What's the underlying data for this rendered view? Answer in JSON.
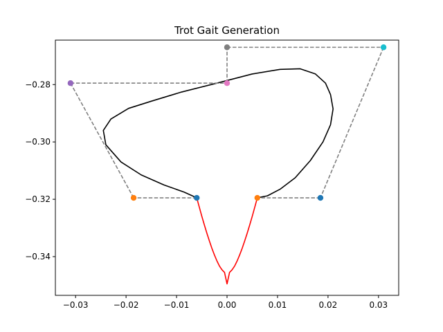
{
  "chart_data": {
    "type": "line",
    "title": "Trot Gait Generation",
    "xlabel": "",
    "ylabel": "",
    "xlim": [
      -0.034,
      0.034
    ],
    "ylim": [
      -0.3535,
      -0.2645
    ],
    "x_ticks": [
      -0.03,
      -0.02,
      -0.01,
      0.0,
      0.01,
      0.02,
      0.03
    ],
    "x_tick_labels": [
      "−0.03",
      "−0.02",
      "−0.01",
      "0.00",
      "0.01",
      "0.02",
      "0.03"
    ],
    "y_ticks": [
      -0.34,
      -0.32,
      -0.3,
      -0.28
    ],
    "y_tick_labels": [
      "−0.34",
      "−0.32",
      "−0.30",
      "−0.28"
    ],
    "grid": false,
    "legend": "none",
    "control_polygon": {
      "style": "dashed",
      "color": "#808080",
      "points": [
        [
          -0.006,
          -0.3195
        ],
        [
          -0.0185,
          -0.3195
        ],
        [
          -0.031,
          -0.2795
        ],
        [
          0.0,
          -0.2795
        ],
        [
          0.0,
          -0.267
        ],
        [
          0.031,
          -0.267
        ],
        [
          0.0185,
          -0.3195
        ],
        [
          0.006,
          -0.3195
        ]
      ]
    },
    "control_points": [
      {
        "x": -0.006,
        "y": -0.3195,
        "color": "#1f77b4"
      },
      {
        "x": -0.0185,
        "y": -0.3195,
        "color": "#ff7f0e"
      },
      {
        "x": -0.031,
        "y": -0.2795,
        "color": "#9467bd"
      },
      {
        "x": 0.0,
        "y": -0.2795,
        "color": "#e377c2"
      },
      {
        "x": 0.0,
        "y": -0.267,
        "color": "#7f7f7f"
      },
      {
        "x": 0.031,
        "y": -0.267,
        "color": "#17becf"
      },
      {
        "x": 0.0185,
        "y": -0.3195,
        "color": "#1f77b4"
      },
      {
        "x": 0.006,
        "y": -0.3195,
        "color": "#ff7f0e"
      }
    ],
    "series": [
      {
        "color": "#000000",
        "x": [
          -0.006,
          -0.0085,
          -0.0125,
          -0.017,
          -0.021,
          -0.024,
          -0.0245,
          -0.023,
          -0.0195,
          -0.015,
          -0.009,
          -0.002,
          0.005,
          0.0105,
          0.0145,
          0.0175,
          0.0195,
          0.0205,
          0.021,
          0.0205,
          0.019,
          0.0165,
          0.0135,
          0.0105,
          0.008,
          0.006
        ],
        "y": [
          -0.3195,
          -0.3175,
          -0.315,
          -0.3115,
          -0.307,
          -0.301,
          -0.296,
          -0.292,
          -0.2883,
          -0.2858,
          -0.2826,
          -0.2795,
          -0.2763,
          -0.2747,
          -0.2745,
          -0.2763,
          -0.2795,
          -0.2835,
          -0.2885,
          -0.294,
          -0.3,
          -0.3065,
          -0.3125,
          -0.3165,
          -0.3188,
          -0.3195
        ]
      },
      {
        "color": "#ff0000",
        "x": [
          -0.006,
          -0.0055,
          -0.005,
          -0.0045,
          -0.004,
          -0.0035,
          -0.003,
          -0.0025,
          -0.002,
          -0.0015,
          -0.001,
          -0.0005,
          0.0,
          0.0005,
          0.001,
          0.0015,
          0.002,
          0.0025,
          0.003,
          0.0035,
          0.004,
          0.0045,
          0.005,
          0.0055,
          0.006
        ],
        "y": [
          -0.3195,
          -0.3227,
          -0.3259,
          -0.3289,
          -0.3318,
          -0.3345,
          -0.3371,
          -0.3394,
          -0.3415,
          -0.3433,
          -0.3446,
          -0.3455,
          -0.3495,
          -0.3455,
          -0.3446,
          -0.3433,
          -0.3415,
          -0.3394,
          -0.3371,
          -0.3345,
          -0.3318,
          -0.3289,
          -0.3259,
          -0.3227,
          -0.3195
        ]
      }
    ]
  }
}
